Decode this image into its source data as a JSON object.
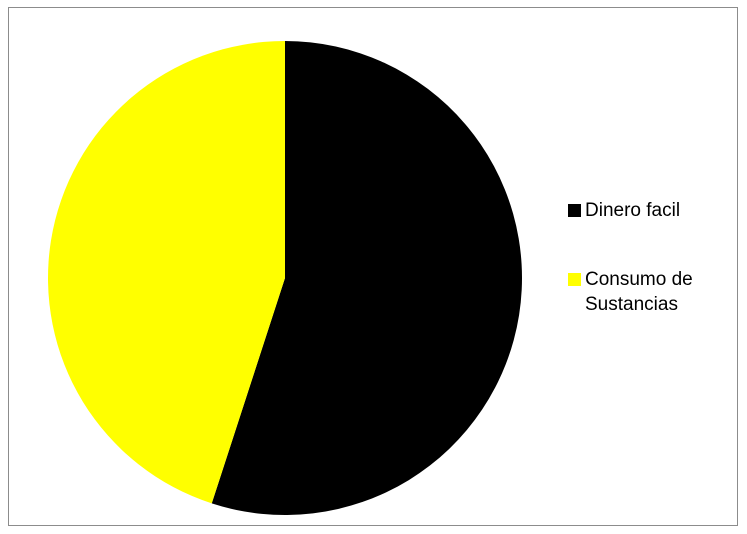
{
  "chart_data": {
    "type": "pie",
    "title": "",
    "categories": [
      "Dinero facil",
      "Consumo de Sustancias"
    ],
    "values": [
      55,
      45
    ],
    "colors": [
      "#000000",
      "#ffff00"
    ],
    "start_angle_deg": 0,
    "direction": "clockwise",
    "legend": {
      "placement": "right",
      "items": [
        {
          "label": "Dinero facil",
          "color": "#000000"
        },
        {
          "label": "Consumo de Sustancias",
          "color": "#ffff00"
        }
      ]
    }
  }
}
